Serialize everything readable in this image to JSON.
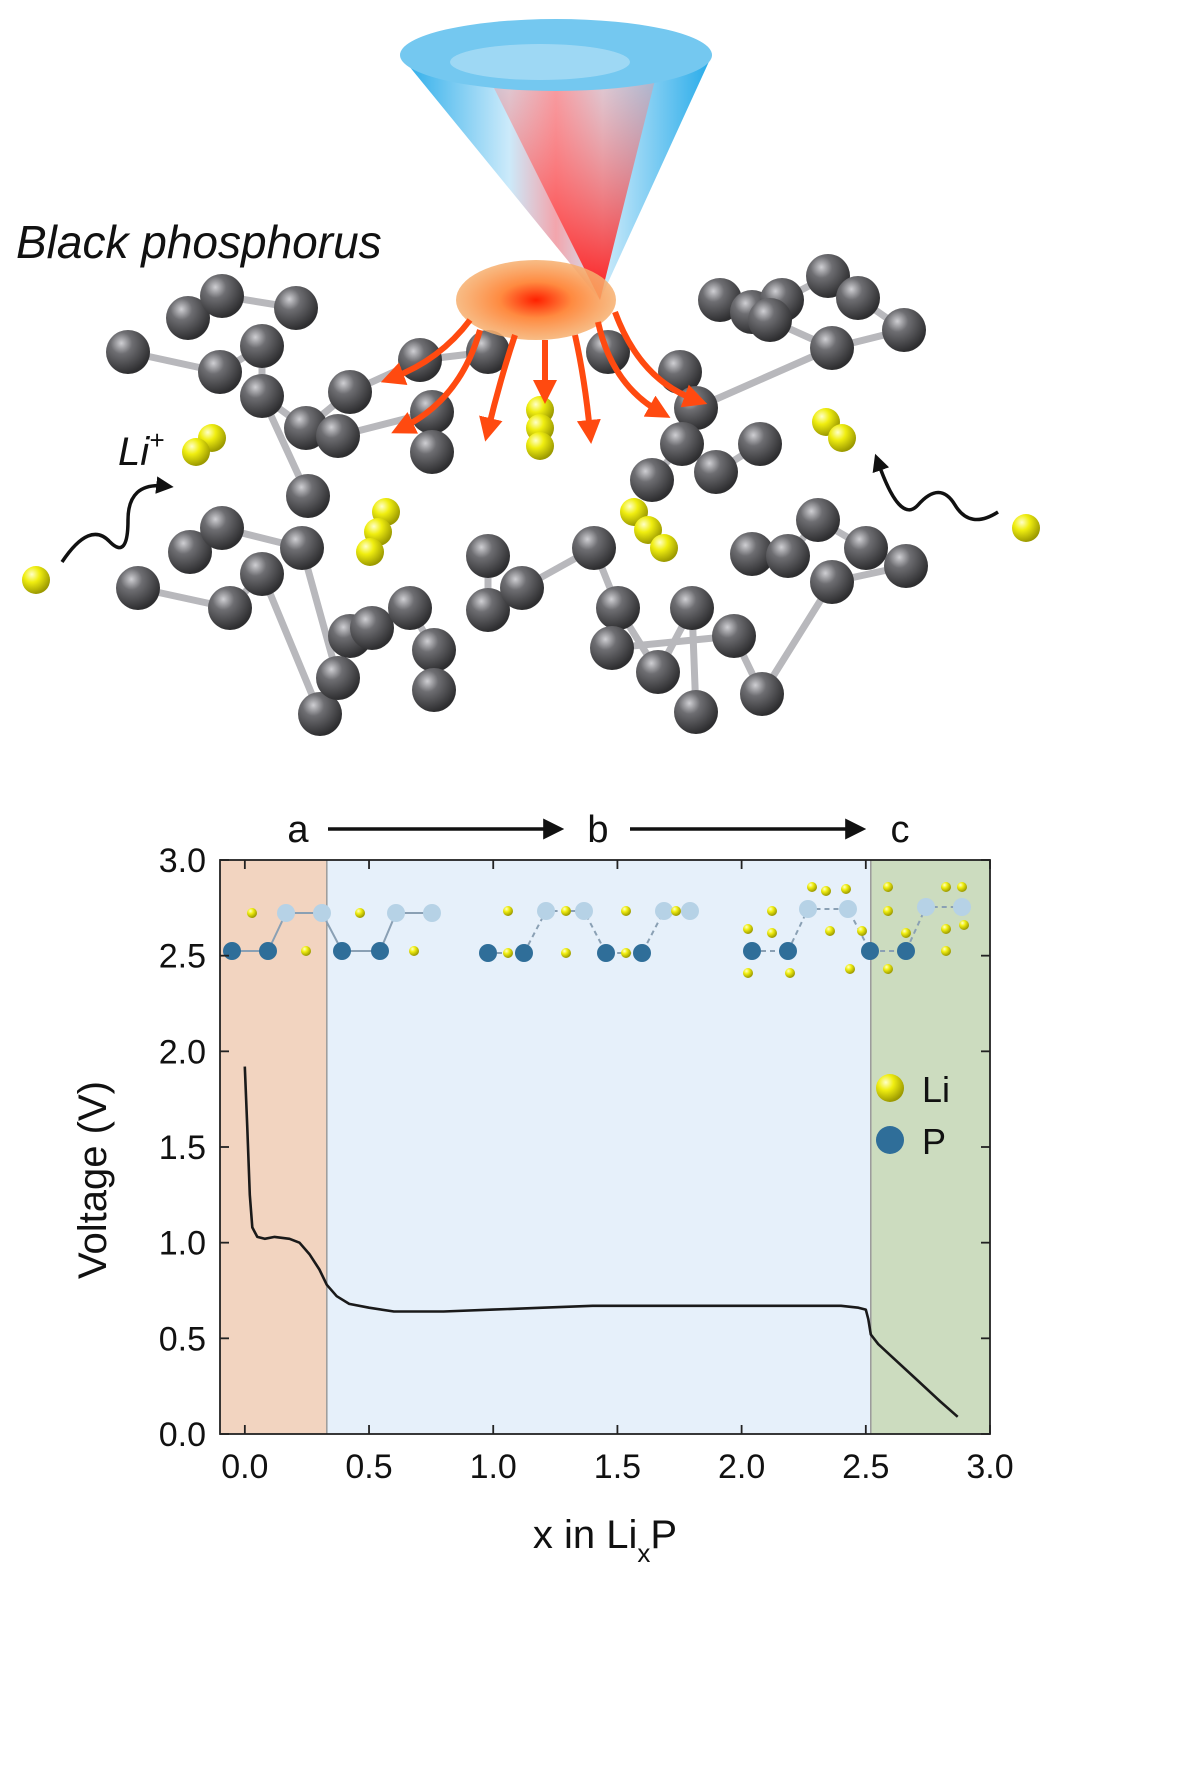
{
  "illustration": {
    "title": "Black phosphorus",
    "ion_label_base": "Li",
    "ion_label_sup": "+",
    "colors": {
      "phosphorus": "#5a5a5e",
      "lithium": "#e8e600",
      "heat": "#ff4a10",
      "cone": "#3bb8ee"
    }
  },
  "stage_labels": [
    "a",
    "b",
    "c"
  ],
  "legend": [
    {
      "label": "Li",
      "color": "#d4d41a"
    },
    {
      "label": "P",
      "color": "#2f6e99"
    }
  ],
  "chart_data": {
    "type": "line",
    "xlabel_prefix": "x in Li",
    "xlabel_sub": "x",
    "xlabel_suffix": "P",
    "ylabel": "Voltage (V)",
    "xlim": [
      -0.1,
      3.0
    ],
    "ylim": [
      0.0,
      3.0
    ],
    "xticks": [
      "0.0",
      "0.5",
      "1.0",
      "1.5",
      "2.0",
      "2.5",
      "3.0"
    ],
    "yticks": [
      "0.0",
      "0.5",
      "1.0",
      "1.5",
      "2.0",
      "2.5",
      "3.0"
    ],
    "regions": [
      {
        "from": -0.1,
        "to": 0.33,
        "color": "#f2d4c0"
      },
      {
        "from": 0.33,
        "to": 2.52,
        "color": "#e6f0fa"
      },
      {
        "from": 2.52,
        "to": 3.0,
        "color": "#ccdcbf"
      }
    ],
    "series": [
      {
        "color": "#1a1a1a",
        "x": [
          0.0,
          0.01,
          0.02,
          0.03,
          0.05,
          0.08,
          0.12,
          0.18,
          0.22,
          0.26,
          0.3,
          0.33,
          0.37,
          0.42,
          0.5,
          0.6,
          0.7,
          0.8,
          1.0,
          1.2,
          1.4,
          1.6,
          1.8,
          2.0,
          2.2,
          2.4,
          2.47,
          2.5,
          2.51,
          2.52,
          2.55,
          2.6,
          2.7,
          2.8,
          2.87
        ],
        "y": [
          1.92,
          1.6,
          1.25,
          1.08,
          1.03,
          1.02,
          1.03,
          1.02,
          1.0,
          0.94,
          0.86,
          0.78,
          0.72,
          0.68,
          0.66,
          0.64,
          0.64,
          0.64,
          0.65,
          0.66,
          0.67,
          0.67,
          0.67,
          0.67,
          0.67,
          0.67,
          0.66,
          0.65,
          0.6,
          0.52,
          0.47,
          0.41,
          0.29,
          0.17,
          0.09
        ]
      }
    ]
  }
}
